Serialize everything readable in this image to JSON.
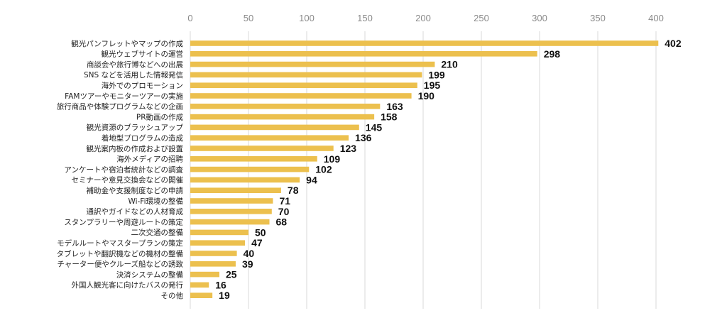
{
  "chart_data": {
    "type": "bar",
    "orientation": "horizontal",
    "title": "",
    "xlabel": "",
    "ylabel": "",
    "xlim": [
      0,
      400
    ],
    "xticks": [
      0,
      50,
      100,
      150,
      200,
      250,
      300,
      350,
      400
    ],
    "grid": "vertical",
    "bar_color": "#ecc04e",
    "categories": [
      "観光パンフレットやマップの作成",
      "観光ウェブサイトの運営",
      "商談会や旅行博などへの出展",
      "SNS などを活用した情報発信",
      "海外でのプロモーション",
      "FAMツアーやモニターツアーの実施",
      "旅行商品や体験プログラムなどの企画",
      "PR動画の作成",
      "観光資源のブラッシュアップ",
      "着地型プログラムの造成",
      "観光案内板の作成および設置",
      "海外メディアの招聘",
      "アンケートや宿泊者統計などの調査",
      "セミナーや意見交換会などの開催",
      "補助金や支援制度などの申請",
      "Wi-Fi環境の整備",
      "通訳やガイドなどの人材育成",
      "スタンプラリーや周遊ルートの策定",
      "二次交通の整備",
      "モデルルートやマスタープランの策定",
      "タブレットや翻訳機などの機材の整備",
      "チャーター便やクルーズ船などの誘致",
      "決済システムの整備",
      "外国人観光客に向けたバスの発行",
      "その他"
    ],
    "values": [
      402,
      298,
      210,
      199,
      195,
      190,
      163,
      158,
      145,
      136,
      123,
      109,
      102,
      94,
      78,
      71,
      70,
      68,
      50,
      47,
      40,
      39,
      25,
      16,
      19
    ]
  }
}
